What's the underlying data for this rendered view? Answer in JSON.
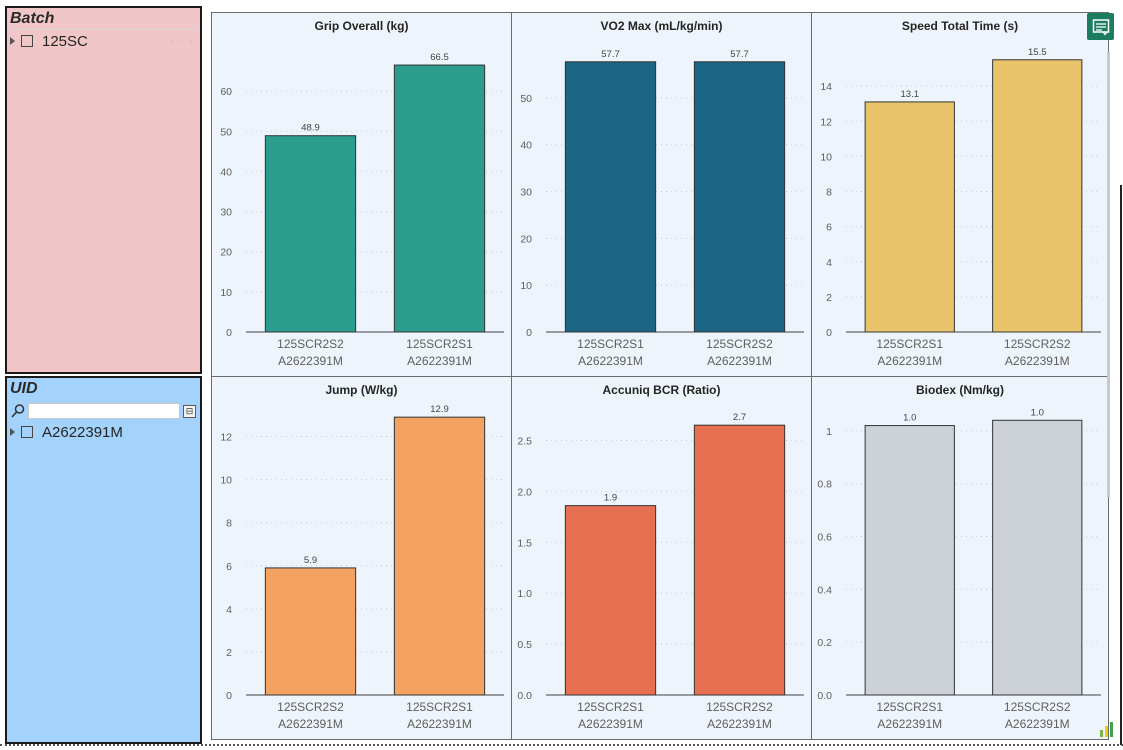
{
  "slicers": {
    "batch": {
      "title": "Batch",
      "items": [
        {
          "label": "125SC"
        }
      ]
    },
    "uid": {
      "title": "UID",
      "search_placeholder": "",
      "items": [
        {
          "label": "A2622391M"
        }
      ]
    }
  },
  "chart_data": [
    {
      "type": "bar",
      "title": "Grip Overall (kg)",
      "categories": [
        "125SCR2S2\nA2622391M",
        "125SCR2S1\nA2622391M"
      ],
      "values": [
        48.9,
        66.5
      ],
      "labels": [
        "48.9",
        "66.5"
      ],
      "ylim": [
        0,
        70
      ],
      "yticks": [
        0,
        10,
        20,
        30,
        40,
        50,
        60
      ],
      "ytick_labels": [
        "0",
        "10",
        "20",
        "30",
        "40",
        "50",
        "60"
      ],
      "color": "#2a9d8f"
    },
    {
      "type": "bar",
      "title": "VO2 Max (mL/kg/min)",
      "categories": [
        "125SCR2S1\nA2622391M",
        "125SCR2S2\nA2622391M"
      ],
      "values": [
        57.7,
        57.7
      ],
      "labels": [
        "57.7",
        "57.7"
      ],
      "ylim": [
        0,
        60
      ],
      "yticks": [
        0,
        10,
        20,
        30,
        40,
        50
      ],
      "ytick_labels": [
        "0",
        "10",
        "20",
        "30",
        "40",
        "50"
      ],
      "color": "#1b6585"
    },
    {
      "type": "bar",
      "title": "Speed Total Time (s)",
      "categories": [
        "125SCR2S1\nA2622391M",
        "125SCR2S2\nA2622391M"
      ],
      "values": [
        13.1,
        15.5
      ],
      "labels": [
        "13.1",
        "15.5"
      ],
      "ylim": [
        0,
        16
      ],
      "yticks": [
        0,
        2,
        4,
        6,
        8,
        10,
        12,
        14
      ],
      "ytick_labels": [
        "0",
        "2",
        "4",
        "6",
        "8",
        "10",
        "12",
        "14"
      ],
      "color": "#e9c46a"
    },
    {
      "type": "bar",
      "title": "Jump (W/kg)",
      "categories": [
        "125SCR2S2\nA2622391M",
        "125SCR2S1\nA2622391M"
      ],
      "values": [
        5.9,
        12.9
      ],
      "labels": [
        "5.9",
        "12.9"
      ],
      "ylim": [
        0,
        13
      ],
      "yticks": [
        0,
        2,
        4,
        6,
        8,
        10,
        12
      ],
      "ytick_labels": [
        "0",
        "2",
        "4",
        "6",
        "8",
        "10",
        "12"
      ],
      "color": "#f4a261"
    },
    {
      "type": "bar",
      "title": "Accuniq BCR (Ratio)",
      "categories": [
        "125SCR2S1\nA2622391M",
        "125SCR2S2\nA2622391M"
      ],
      "values": [
        1.86,
        2.65
      ],
      "labels": [
        "1.9",
        "2.7"
      ],
      "ylim": [
        0,
        2.75
      ],
      "yticks": [
        0,
        0.5,
        1.0,
        1.5,
        2.0,
        2.5
      ],
      "ytick_labels": [
        "0.0",
        "0.5",
        "1.0",
        "1.5",
        "2.0",
        "2.5"
      ],
      "color": "#e76f51"
    },
    {
      "type": "bar",
      "title": "Biodex (Nm/kg)",
      "categories": [
        "125SCR2S1\nA2622391M",
        "125SCR2S2\nA2622391M"
      ],
      "values": [
        1.02,
        1.04
      ],
      "labels": [
        "1.0",
        "1.0"
      ],
      "ylim": [
        0,
        1.06
      ],
      "yticks": [
        0,
        0.2,
        0.4,
        0.6,
        0.8,
        1.0
      ],
      "ytick_labels": [
        "0.0",
        "0.2",
        "0.4",
        "0.6",
        "0.8",
        "1"
      ],
      "color": "#cdd2d9"
    }
  ]
}
